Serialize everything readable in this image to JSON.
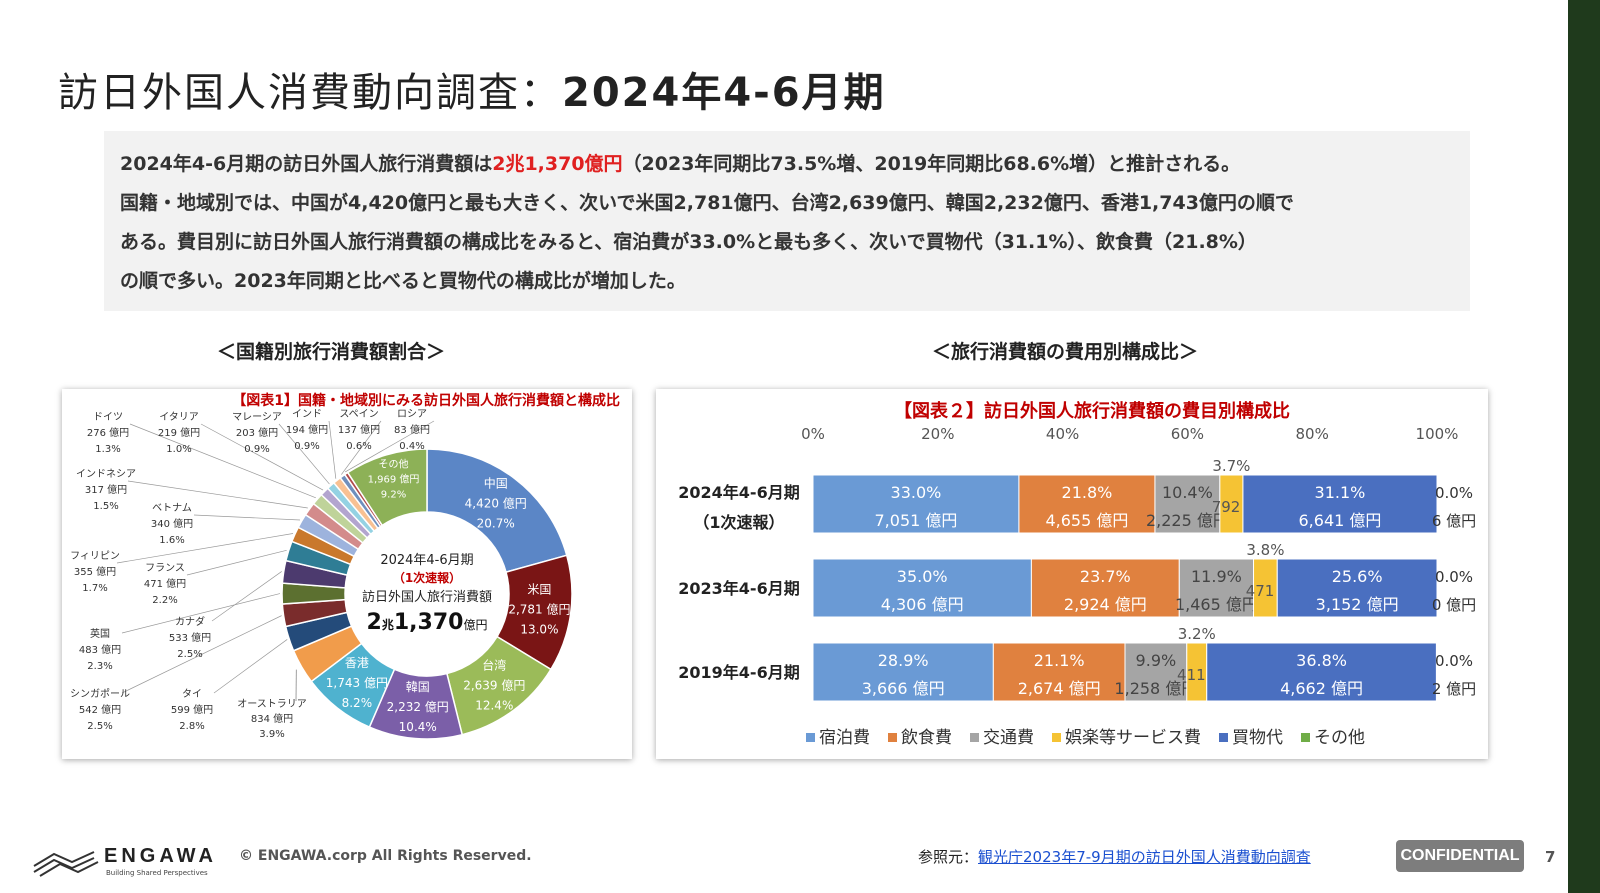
{
  "page": {
    "title_part1": "訪日外国人消費動向調査：",
    "title_part2": "2024年4-6月期",
    "summary": {
      "line1_pre": "2024年4-6月期の訪日外国人旅行消費額は",
      "line1_highlight": "2兆1,370億円",
      "line1_post": "（2023年同期比73.5%増、2019年同期比68.6%増）と推計される。",
      "line2": "国籍・地域別では、中国が4,420億円と最も大きく、次いで米国2,781億円、台湾2,639億円、韓国2,232億円、香港1,743億円の順で",
      "line3": "ある。費目別に訪日外国人旅行消費額の構成比をみると、宿泊費が33.0%と最も多く、次いで買物代（31.1%）、飲食費（21.8%）",
      "line4": "の順で多い。2023年同期と比べると買物代の構成比が増加した。"
    },
    "section_left": "＜国籍別旅行消費額割合＞",
    "section_right": "＜旅行消費額の費用別構成比＞",
    "footer": {
      "brand": "ENGAWA",
      "tagline": "Building Shared Perspectives",
      "copyright": "© ENGAWA.corp All Rights Reserved.",
      "ref_label": "参照元：",
      "ref_link": "観光庁2023年7-9月期の訪日外国人消費動向調査",
      "badge": "CONFIDENTIAL",
      "page_number": "7"
    }
  },
  "chart_data": [
    {
      "type": "pie",
      "title": "【図表1】国籍・地域別にみる訪日外国人旅行消費額と構成比",
      "center_label": [
        "2024年4-6月期",
        "（1次速報）",
        "訪日外国人旅行消費額"
      ],
      "center_total": {
        "pre": "2",
        "unit1": "兆",
        "mid": "1,370",
        "unit2": "億円"
      },
      "slices": [
        {
          "name": "中国",
          "value": "4,420 億円",
          "pct": 20.7,
          "pct_label": "20.7%",
          "color": "#5b86c6"
        },
        {
          "name": "米国",
          "value": "2,781 億円",
          "pct": 13.0,
          "pct_label": "13.0%",
          "color": "#7a1515"
        },
        {
          "name": "台湾",
          "value": "2,639 億円",
          "pct": 12.4,
          "pct_label": "12.4%",
          "color": "#9bbb59"
        },
        {
          "name": "韓国",
          "value": "2,232 億円",
          "pct": 10.4,
          "pct_label": "10.4%",
          "color": "#7b5fa8"
        },
        {
          "name": "香港",
          "value": "1,743 億円",
          "pct": 8.2,
          "pct_label": "8.2%",
          "color": "#4fb2cf"
        },
        {
          "name": "オーストラリア",
          "value": "834 億円",
          "pct": 3.9,
          "pct_label": "3.9%",
          "color": "#f19c4b"
        },
        {
          "name": "タイ",
          "value": "599 億円",
          "pct": 2.8,
          "pct_label": "2.8%",
          "color": "#244b7a"
        },
        {
          "name": "シンガポール",
          "value": "542 億円",
          "pct": 2.5,
          "pct_label": "2.5%",
          "color": "#7a2c2c"
        },
        {
          "name": "英国",
          "value": "483 億円",
          "pct": 2.3,
          "pct_label": "2.3%",
          "color": "#5c7030"
        },
        {
          "name": "カナダ",
          "value": "533 億円",
          "pct": 2.5,
          "pct_label": "2.5%",
          "color": "#4c3a6e"
        },
        {
          "name": "フランス",
          "value": "471 億円",
          "pct": 2.2,
          "pct_label": "2.2%",
          "color": "#2f7d95"
        },
        {
          "name": "フィリピン",
          "value": "355 億円",
          "pct": 1.7,
          "pct_label": "1.7%",
          "color": "#c9782c"
        },
        {
          "name": "ベトナム",
          "value": "340 億円",
          "pct": 1.6,
          "pct_label": "1.6%",
          "color": "#9db3dd"
        },
        {
          "name": "インドネシア",
          "value": "317 億円",
          "pct": 1.5,
          "pct_label": "1.5%",
          "color": "#d38b8b"
        },
        {
          "name": "ドイツ",
          "value": "276 億円",
          "pct": 1.3,
          "pct_label": "1.3%",
          "color": "#bfd39a"
        },
        {
          "name": "イタリア",
          "value": "219 億円",
          "pct": 1.0,
          "pct_label": "1.0%",
          "color": "#b3a5cf"
        },
        {
          "name": "マレーシア",
          "value": "203 億円",
          "pct": 0.9,
          "pct_label": "0.9%",
          "color": "#94d2e3"
        },
        {
          "name": "インド",
          "value": "194 億円",
          "pct": 0.9,
          "pct_label": "0.9%",
          "color": "#f8c193"
        },
        {
          "name": "スペイン",
          "value": "137 億円",
          "pct": 0.6,
          "pct_label": "0.6%",
          "color": "#6f8fbd"
        },
        {
          "name": "ロシア",
          "value": "83 億円",
          "pct": 0.4,
          "pct_label": "0.4%",
          "color": "#b04a4a"
        },
        {
          "name": "その他",
          "value": "1,969 億円",
          "pct": 9.2,
          "pct_label": "9.2%",
          "color": "#8db157"
        }
      ]
    },
    {
      "type": "bar",
      "orientation": "horizontal-stacked-100",
      "title": "【図表２】訪日外国人旅行消費額の費目別構成比",
      "xlim": [
        0,
        100
      ],
      "x_ticks": [
        "0%",
        "20%",
        "40%",
        "60%",
        "80%",
        "100%"
      ],
      "categories": [
        {
          "label": "2024年4-6月期",
          "sub": "（1次速報）"
        },
        {
          "label": "2023年4-6月期",
          "sub": ""
        },
        {
          "label": "2019年4-6月期",
          "sub": ""
        }
      ],
      "series": [
        {
          "name": "宿泊費",
          "color": "#6a9ad5",
          "values": [
            33.0,
            35.0,
            28.9
          ],
          "pct_labels": [
            "33.0%",
            "35.0%",
            "28.9%"
          ],
          "amounts": [
            "7,051 億円",
            "4,306 億円",
            "3,666 億円"
          ]
        },
        {
          "name": "飲食費",
          "color": "#e0813f",
          "values": [
            21.8,
            23.7,
            21.1
          ],
          "pct_labels": [
            "21.8%",
            "23.7%",
            "21.1%"
          ],
          "amounts": [
            "4,655 億円",
            "2,924 億円",
            "2,674 億円"
          ]
        },
        {
          "name": "交通費",
          "color": "#a5a5a5",
          "values": [
            10.4,
            11.9,
            9.9
          ],
          "pct_labels": [
            "10.4%",
            "11.9%",
            "9.9%"
          ],
          "amounts": [
            "2,225 億円",
            "1,465 億円",
            "1,258 億円"
          ]
        },
        {
          "name": "娯楽等サービス費",
          "color": "#f5c334",
          "values": [
            3.7,
            3.8,
            3.2
          ],
          "pct_labels": [
            "3.7%",
            "3.8%",
            "3.2%"
          ],
          "amounts": [
            "792 億円",
            "471 億円",
            "411 億円"
          ]
        },
        {
          "name": "買物代",
          "color": "#4a6fc0",
          "values": [
            31.1,
            25.6,
            36.8
          ],
          "pct_labels": [
            "31.1%",
            "25.6%",
            "36.8%"
          ],
          "amounts": [
            "6,641 億円",
            "3,152 億円",
            "4,662 億円"
          ]
        },
        {
          "name": "その他",
          "color": "#70ad47",
          "values": [
            0.0,
            0.0,
            0.0
          ],
          "pct_labels": [
            "0.0%",
            "0.0%",
            "0.0%"
          ],
          "amounts": [
            "6 億円",
            "0 億円",
            "2 億円"
          ]
        }
      ],
      "legend": "bottom"
    }
  ]
}
